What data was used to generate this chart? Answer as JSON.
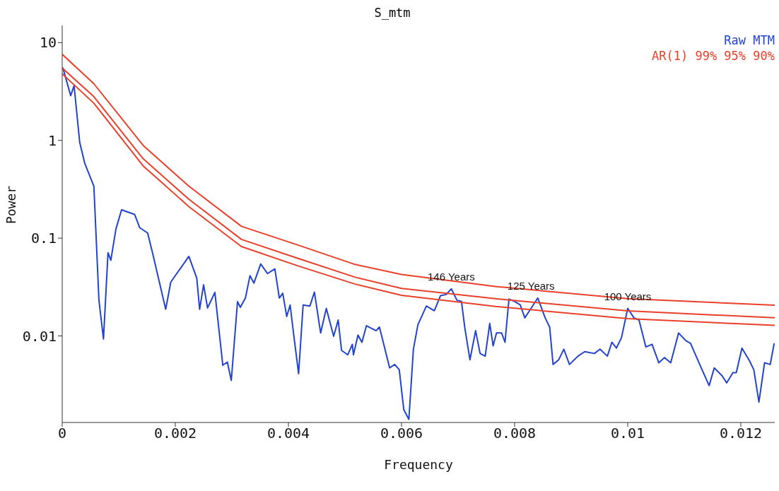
{
  "chart_data": {
    "type": "line",
    "title": "S_mtm",
    "xlabel": "Frequency",
    "ylabel": "Power",
    "xlim": [
      0,
      0.0126
    ],
    "xticks": [
      {
        "value": 0,
        "label": "0"
      },
      0.002,
      0.004,
      0.006,
      0.008,
      0.01,
      0.012
    ],
    "ylim": [
      0.0013,
      15
    ],
    "yticks": [
      0.01,
      0.1,
      1,
      10
    ],
    "log": "y",
    "grid": false,
    "legend": "top right",
    "marker": "none",
    "line_style": "solid",
    "series": [
      {
        "name": "Raw MTM",
        "color": "#2244cc",
        "x": [
          1e-05,
          0.00015,
          0.00021,
          0.00031,
          0.0004,
          0.00056,
          0.00065,
          0.00073,
          0.00081,
          0.00086,
          0.00095,
          0.00105,
          0.00128,
          0.00137,
          0.00151,
          0.0016,
          0.00183,
          0.00192,
          0.00224,
          0.00238,
          0.00243,
          0.0025,
          0.00257,
          0.0027,
          0.00284,
          0.00292,
          0.00299,
          0.0031,
          0.00315,
          0.00324,
          0.00332,
          0.00339,
          0.00351,
          0.00363,
          0.00376,
          0.00384,
          0.0039,
          0.00397,
          0.00403,
          0.00409,
          0.00418,
          0.00426,
          0.00438,
          0.00446,
          0.00457,
          0.00467,
          0.0048,
          0.00488,
          0.00494,
          0.00505,
          0.00513,
          0.00515,
          0.00523,
          0.0053,
          0.00538,
          0.00555,
          0.00561,
          0.00579,
          0.00588,
          0.00596,
          0.00604,
          0.00613,
          0.00621,
          0.00629,
          0.00644,
          0.00658,
          0.00669,
          0.00679,
          0.00688,
          0.00698,
          0.00706,
          0.00712,
          0.00721,
          0.00731,
          0.00739,
          0.00748,
          0.00756,
          0.00762,
          0.00768,
          0.00777,
          0.00783,
          0.0079,
          0.008,
          0.0081,
          0.00818,
          0.00829,
          0.00841,
          0.00854,
          0.00862,
          0.00868,
          0.00878,
          0.00887,
          0.00897,
          0.00912,
          0.00924,
          0.00941,
          0.00951,
          0.00964,
          0.00972,
          0.0098,
          0.00989,
          0.01,
          0.01011,
          0.0102,
          0.01032,
          0.01043,
          0.01055,
          0.01065,
          0.01076,
          0.0109,
          0.01103,
          0.01111,
          0.01128,
          0.01144,
          0.01153,
          0.01167,
          0.01175,
          0.01186,
          0.01192,
          0.01202,
          0.01215,
          0.01223,
          0.01232,
          0.01242,
          0.01252,
          0.01259
        ],
        "values": [
          5.56,
          2.87,
          3.63,
          0.95,
          0.58,
          0.34,
          0.023,
          0.0093,
          0.071,
          0.0594,
          0.124,
          0.195,
          0.175,
          0.128,
          0.113,
          0.0698,
          0.0187,
          0.0355,
          0.065,
          0.0389,
          0.0187,
          0.0333,
          0.0193,
          0.0278,
          0.005,
          0.0054,
          0.0035,
          0.0224,
          0.0196,
          0.0244,
          0.0412,
          0.0347,
          0.0544,
          0.0434,
          0.0485,
          0.0244,
          0.0273,
          0.0158,
          0.0207,
          0.0107,
          0.0041,
          0.0207,
          0.0202,
          0.028,
          0.0107,
          0.0191,
          0.0099,
          0.0145,
          0.0071,
          0.0064,
          0.0082,
          0.0064,
          0.0102,
          0.0086,
          0.0127,
          0.0113,
          0.0123,
          0.0047,
          0.0051,
          0.0045,
          0.00176,
          0.0014,
          0.0073,
          0.013,
          0.0202,
          0.0181,
          0.0258,
          0.0265,
          0.0303,
          0.0232,
          0.0225,
          0.012,
          0.0057,
          0.0113,
          0.0066,
          0.0062,
          0.0134,
          0.0079,
          0.0107,
          0.0107,
          0.0086,
          0.0238,
          0.0225,
          0.0207,
          0.0153,
          0.0191,
          0.0244,
          0.0153,
          0.0123,
          0.0051,
          0.0057,
          0.0073,
          0.0051,
          0.0062,
          0.0069,
          0.0066,
          0.0073,
          0.0062,
          0.0086,
          0.0075,
          0.0096,
          0.0191,
          0.0153,
          0.0145,
          0.0077,
          0.0082,
          0.0053,
          0.006,
          0.0053,
          0.0107,
          0.0089,
          0.0084,
          0.005,
          0.0031,
          0.0047,
          0.0039,
          0.0033,
          0.0042,
          0.0042,
          0.0075,
          0.0056,
          0.0045,
          0.0021,
          0.0053,
          0.0051,
          0.0084
        ]
      },
      {
        "name": "AR(1) 99% 95% 90%",
        "color": "#e8402a",
        "x": [
          0,
          0.00056,
          0.00143,
          0.00224,
          0.00317,
          0.00417,
          0.00517,
          0.006,
          0.00766,
          0.01,
          0.0126
        ],
        "values": [
          7.6,
          3.8,
          0.89,
          0.34,
          0.132,
          0.085,
          0.054,
          0.0425,
          0.032,
          0.024,
          0.0206
        ]
      },
      {
        "color": "#e8402a",
        "x": [
          0,
          0.00056,
          0.00143,
          0.00224,
          0.00317,
          0.00417,
          0.00517,
          0.006,
          0.00766,
          0.01,
          0.0126
        ],
        "values": [
          5.5,
          2.8,
          0.65,
          0.25,
          0.097,
          0.062,
          0.04,
          0.0306,
          0.024,
          0.018,
          0.0153
        ]
      },
      {
        "color": "#e8402a",
        "x": [
          0,
          0.00056,
          0.00143,
          0.00224,
          0.00317,
          0.00417,
          0.00517,
          0.006,
          0.00766,
          0.01,
          0.0126
        ],
        "values": [
          4.8,
          2.4,
          0.55,
          0.21,
          0.082,
          0.052,
          0.034,
          0.026,
          0.02,
          0.015,
          0.0128
        ]
      }
    ],
    "annotations": [
      {
        "text": "146 Years",
        "x": 0.00688,
        "y": 0.0303
      },
      {
        "text": "125 Years",
        "x": 0.00829,
        "y": 0.0244
      },
      {
        "text": "100 Years",
        "x": 0.01,
        "y": 0.0191
      }
    ]
  }
}
